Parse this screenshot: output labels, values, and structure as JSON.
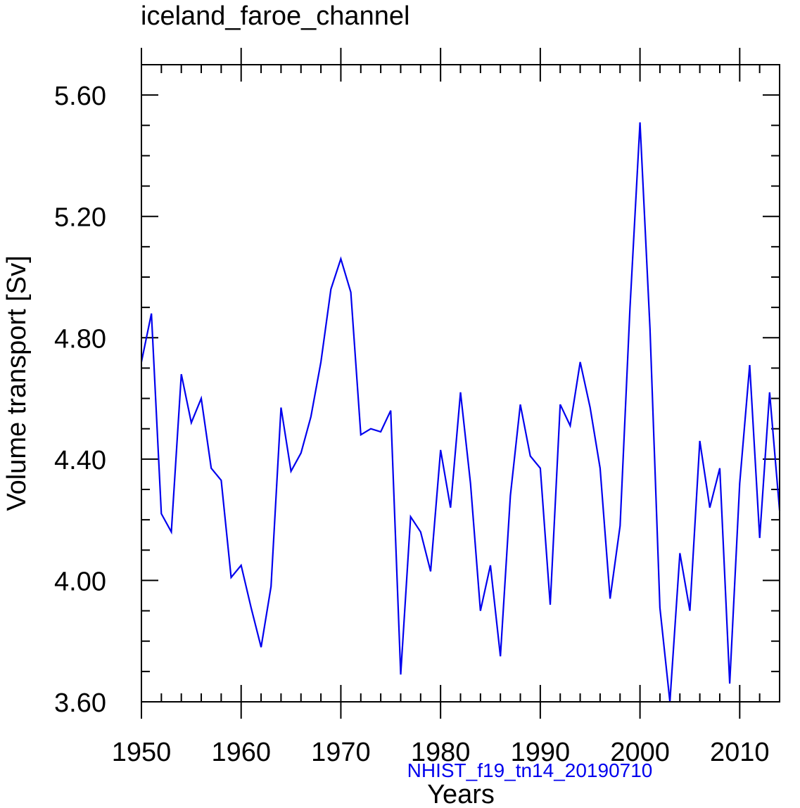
{
  "chart_data": {
    "type": "line",
    "title": "iceland_faroe_channel",
    "xlabel": "Years",
    "ylabel": "Volume transport [Sv]",
    "annotation": "NHIST_f19_tn14_20190710",
    "xlim": [
      1950,
      2014
    ],
    "ylim": [
      3.6,
      5.7
    ],
    "x_ticks": [
      1950,
      1960,
      1970,
      1980,
      1990,
      2000,
      2010
    ],
    "x_tick_labels": [
      "1950",
      "1960",
      "1970",
      "1980",
      "1990",
      "2000",
      "2010"
    ],
    "y_ticks": [
      3.6,
      4.0,
      4.4,
      4.8,
      5.2,
      5.6
    ],
    "y_tick_labels": [
      "3.60",
      "4.00",
      "4.40",
      "4.80",
      "5.20",
      "5.60"
    ],
    "grid": false,
    "series": [
      {
        "name": "NHIST_f19_tn14_20190710",
        "color": "#0000ee",
        "x": [
          1950,
          1951,
          1952,
          1953,
          1954,
          1955,
          1956,
          1957,
          1958,
          1959,
          1960,
          1961,
          1962,
          1963,
          1964,
          1965,
          1966,
          1967,
          1968,
          1969,
          1970,
          1971,
          1972,
          1973,
          1974,
          1975,
          1976,
          1977,
          1978,
          1979,
          1980,
          1981,
          1982,
          1983,
          1984,
          1985,
          1986,
          1987,
          1988,
          1989,
          1990,
          1991,
          1992,
          1993,
          1994,
          1995,
          1996,
          1997,
          1998,
          1999,
          2000,
          2001,
          2002,
          2003,
          2004,
          2005,
          2006,
          2007,
          2008,
          2009,
          2010,
          2011,
          2012,
          2013,
          2014
        ],
        "values": [
          4.72,
          4.88,
          4.22,
          4.16,
          4.68,
          4.52,
          4.6,
          4.37,
          4.33,
          4.01,
          4.05,
          3.91,
          3.78,
          3.98,
          4.57,
          4.36,
          4.42,
          4.54,
          4.72,
          4.96,
          5.06,
          4.95,
          4.48,
          4.5,
          4.49,
          4.56,
          3.69,
          4.21,
          4.16,
          4.03,
          4.43,
          4.24,
          4.62,
          4.32,
          3.9,
          4.05,
          3.75,
          4.28,
          4.58,
          4.41,
          4.37,
          3.92,
          4.58,
          4.51,
          4.72,
          4.57,
          4.37,
          3.94,
          4.18,
          4.9,
          5.51,
          4.83,
          3.91,
          3.6,
          4.09,
          3.9,
          4.46,
          4.24,
          4.37,
          3.66,
          4.32,
          4.71,
          4.14,
          4.62,
          4.23
        ]
      }
    ]
  },
  "colors": {
    "line": "#0000ee",
    "annotation": "#0000ee",
    "axes": "#000000"
  }
}
